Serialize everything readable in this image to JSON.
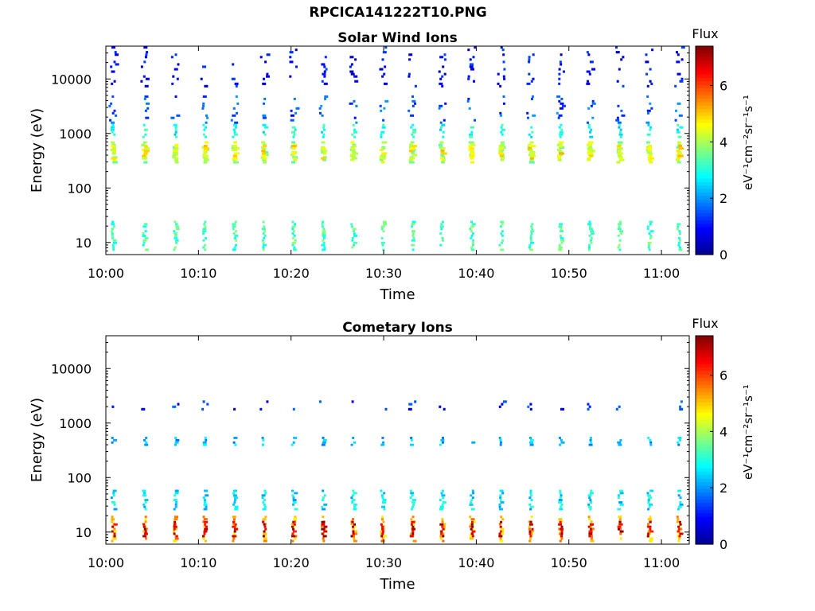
{
  "figure_title": "RPCICA141222T10.PNG",
  "colors": {
    "colormap": [
      "#00008f",
      "#0000ff",
      "#0080ff",
      "#00ffff",
      "#80ff80",
      "#ffff00",
      "#ff8000",
      "#ff0000",
      "#800000"
    ]
  },
  "chart_data": [
    {
      "type": "heatmap",
      "title": "Solar Wind Ions",
      "xlabel": "Time",
      "ylabel": "Energy (eV)",
      "x_tick_labels": [
        "10:00",
        "10:10",
        "10:20",
        "10:30",
        "10:40",
        "10:50",
        "11:00"
      ],
      "x_tick_minutes": [
        0,
        10,
        20,
        30,
        40,
        50,
        60
      ],
      "xlim_minutes": [
        0,
        63
      ],
      "y_scale": "log",
      "ylim": [
        6,
        40000
      ],
      "y_tick_labels": [
        "10",
        "100",
        "1000",
        "10000"
      ],
      "y_tick_values": [
        10,
        100,
        1000,
        10000
      ],
      "colorbar": {
        "title": "Flux",
        "label": "eV⁻¹cm⁻²sr⁻¹s⁻¹",
        "range": [
          0,
          7.4
        ],
        "tick_labels": [
          "0",
          "2",
          "4",
          "6"
        ],
        "tick_values": [
          0,
          2,
          4,
          6
        ]
      },
      "sweep_minutes": [
        0.8,
        4.2,
        7.5,
        10.7,
        13.9,
        17.1,
        20.3,
        23.5,
        26.7,
        29.9,
        33.1,
        36.3,
        39.5,
        42.7,
        45.9,
        49.1,
        52.3,
        55.5,
        58.7,
        61.9
      ],
      "bands": [
        {
          "energy_min": 280,
          "energy_max": 720,
          "flux": 4.0
        },
        {
          "energy_min": 330,
          "energy_max": 620,
          "flux": 4.6
        },
        {
          "energy_min": 820,
          "energy_max": 1500,
          "flux": 2.9
        },
        {
          "energy_min": 1500,
          "energy_max": 5000,
          "flux": 1.5
        },
        {
          "energy_min": 7000,
          "energy_max": 40000,
          "flux": 0.9
        },
        {
          "energy_min": 7,
          "energy_max": 25,
          "flux": 3.3
        }
      ]
    },
    {
      "type": "heatmap",
      "title": "Cometary Ions",
      "xlabel": "Time",
      "ylabel": "Energy (eV)",
      "x_tick_labels": [
        "10:00",
        "10:10",
        "10:20",
        "10:30",
        "10:40",
        "10:50",
        "11:00"
      ],
      "x_tick_minutes": [
        0,
        10,
        20,
        30,
        40,
        50,
        60
      ],
      "xlim_minutes": [
        0,
        63
      ],
      "y_scale": "log",
      "ylim": [
        6,
        40000
      ],
      "y_tick_labels": [
        "10",
        "100",
        "1000",
        "10000"
      ],
      "y_tick_values": [
        10,
        100,
        1000,
        10000
      ],
      "colorbar": {
        "title": "Flux",
        "label": "eV⁻¹cm⁻²sr⁻¹s⁻¹",
        "range": [
          0,
          7.4
        ],
        "tick_labels": [
          "0",
          "2",
          "4",
          "6"
        ],
        "tick_values": [
          0,
          2,
          4,
          6
        ]
      },
      "sweep_minutes": [
        0.8,
        4.2,
        7.5,
        10.7,
        13.9,
        17.1,
        20.3,
        23.5,
        26.7,
        29.9,
        33.1,
        36.3,
        39.5,
        42.7,
        45.9,
        49.1,
        52.3,
        55.5,
        58.7,
        61.9
      ],
      "bands": [
        {
          "energy_min": 380,
          "energy_max": 560,
          "flux": 2.3
        },
        {
          "energy_min": 1700,
          "energy_max": 2600,
          "flux": 1.2
        },
        {
          "energy_min": 6.5,
          "energy_max": 20,
          "flux": 5.2
        },
        {
          "energy_min": 8,
          "energy_max": 16,
          "flux": 6.8
        },
        {
          "energy_min": 25,
          "energy_max": 60,
          "flux": 2.6
        }
      ]
    }
  ]
}
